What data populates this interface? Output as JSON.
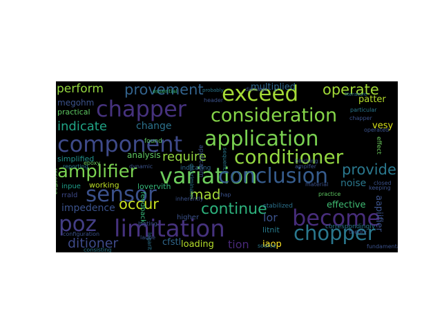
{
  "words": [
    {
      "text": "variation",
      "color": "#6ccc5c"
    },
    {
      "text": "limitation",
      "color": "#46327e"
    },
    {
      "text": "application",
      "color": "#7ad151"
    },
    {
      "text": "component",
      "color": "#3e4a89"
    },
    {
      "text": "chapper",
      "color": "#46327e"
    },
    {
      "text": "conclusion",
      "color": "#365c8d"
    },
    {
      "text": "conditioner",
      "color": "#93d741"
    },
    {
      "text": "consideration",
      "color": "#86d549"
    },
    {
      "text": "exceed",
      "color": "#a5db36"
    },
    {
      "text": "become",
      "color": "#472d7b"
    },
    {
      "text": "sensor",
      "color": "#3b518b"
    },
    {
      "text": "chopper",
      "color": "#2a788e"
    },
    {
      "text": "poz",
      "color": "#433e85"
    },
    {
      "text": "amplifier",
      "color": "#7ad151"
    },
    {
      "text": "provement",
      "color": "#33638d"
    },
    {
      "text": "operate",
      "color": "#a2da37"
    },
    {
      "text": "continue",
      "color": "#2db27d"
    },
    {
      "text": "provide",
      "color": "#2a788e"
    },
    {
      "text": "indicate",
      "color": "#20a486"
    },
    {
      "text": "require",
      "color": "#95d840"
    },
    {
      "text": "occur",
      "color": "#c8e020"
    },
    {
      "text": "mad",
      "color": "#a5db36"
    },
    {
      "text": "ditioner",
      "color": "#3e4a89"
    },
    {
      "text": "perform",
      "color": "#95d840"
    },
    {
      "text": "change",
      "color": "#2c728e"
    },
    {
      "text": "effective",
      "color": "#3fbc73"
    },
    {
      "text": "noise",
      "color": "#2a788e"
    },
    {
      "text": "impedence",
      "color": "#3b528b"
    },
    {
      "text": "analysis",
      "color": "#5ec962"
    },
    {
      "text": "megohm",
      "color": "#3b528b"
    },
    {
      "text": "practical",
      "color": "#5ec962"
    },
    {
      "text": "simplified",
      "color": "#21918c"
    },
    {
      "text": "working",
      "color": "#bddf26"
    },
    {
      "text": "lovervith",
      "color": "#35b779"
    },
    {
      "text": "inpue",
      "color": "#1f9e89"
    },
    {
      "text": "rrald",
      "color": "#3e4a89"
    },
    {
      "text": "patter",
      "color": "#b5de2b"
    },
    {
      "text": "vesy",
      "color": "#d8e219"
    },
    {
      "text": "multiplied",
      "color": "#31688e"
    },
    {
      "text": "aapiifier",
      "color": "#3b528b"
    },
    {
      "text": "lor",
      "color": "#3b528b"
    },
    {
      "text": "iaop",
      "color": "#fde725"
    },
    {
      "text": "cfstl",
      "color": "#31688e"
    },
    {
      "text": "loading",
      "color": "#b5de2b"
    },
    {
      "text": "tion",
      "color": "#482878"
    },
    {
      "text": "litnit",
      "color": "#287c8e"
    },
    {
      "text": "higher",
      "color": "#3b528b"
    },
    {
      "text": "feedback",
      "color": "#35b779"
    },
    {
      "text": "correspondingly",
      "color": "#2a788e"
    },
    {
      "text": "fundamental",
      "color": "#3b528b"
    },
    {
      "text": "stabilized",
      "color": "#2c728e"
    },
    {
      "text": "source",
      "color": "#2a788e"
    },
    {
      "text": "material",
      "color": "#3b528b"
    },
    {
      "text": "practice",
      "color": "#5ec962"
    },
    {
      "text": "discriminate",
      "color": "#2a788e"
    },
    {
      "text": "amplfer",
      "color": "#3b528b"
    },
    {
      "text": "applicatim",
      "color": "#3b528b"
    },
    {
      "text": "indicating",
      "color": "#31688e"
    },
    {
      "text": "blocking",
      "color": "#3b528b"
    },
    {
      "text": "epoxy",
      "color": "#6ccc5c"
    },
    {
      "text": "dynamic",
      "color": "#3b528b"
    },
    {
      "text": "found",
      "color": "#5ec962"
    },
    {
      "text": "essential",
      "color": "#35b779"
    },
    {
      "text": "probably",
      "color": "#2a788e"
    },
    {
      "text": "header",
      "color": "#3b528b"
    },
    {
      "text": "particular",
      "color": "#2a788e"
    },
    {
      "text": "chapper",
      "color": "#3b528b"
    },
    {
      "text": "operated",
      "color": "#3b528b"
    },
    {
      "text": "effect",
      "color": "#6ccc5c"
    },
    {
      "text": "damage",
      "color": "#3b528b"
    },
    {
      "text": "literature",
      "color": "#2a788e"
    },
    {
      "text": "bigting",
      "color": "#3b528b"
    },
    {
      "text": "logarit",
      "color": "#2c728e"
    },
    {
      "text": "chap",
      "color": "#3b528b"
    },
    {
      "text": "inherently",
      "color": "#3b528b"
    },
    {
      "text": "consisting",
      "color": "#2a788e"
    },
    {
      "text": "configuration",
      "color": "#3b528b"
    },
    {
      "text": "recording",
      "color": "#6ccc5c"
    },
    {
      "text": "laobe",
      "color": "#3b528b"
    },
    {
      "text": "keeping",
      "color": "#3b528b"
    },
    {
      "text": "sequence",
      "color": "#2a788e"
    },
    {
      "text": "theory",
      "color": "#3b528b"
    },
    {
      "text": "reporting",
      "color": "#2a788e"
    },
    {
      "text": "closed",
      "color": "#3b528b"
    }
  ]
}
